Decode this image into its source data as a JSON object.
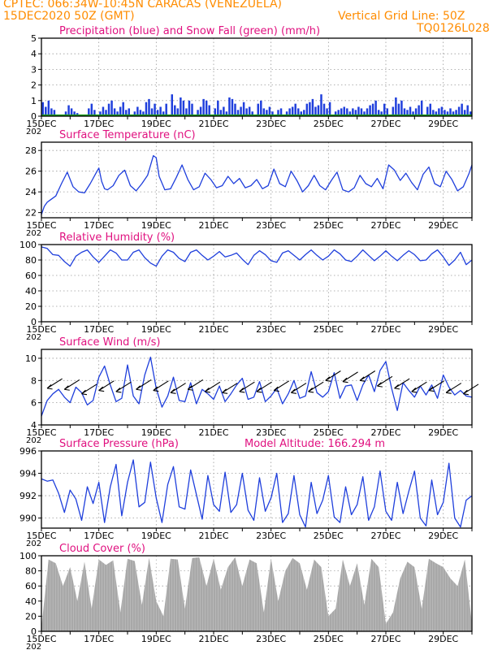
{
  "header": {
    "line1": "CPTEC:   066:34W-10:45N   CARACAS (VENEZUELA)",
    "line2": "15DEC2020 50Z (GMT)",
    "grid_note": "Vertical Grid Line: 50Z",
    "code": "TQ0126L028"
  },
  "colors": {
    "header_text": "#ff8c00",
    "panel_title": "#e0107f",
    "series_line": "#1f3fdc",
    "snow": "#1a9c1a",
    "cloud": "#a8a8a8",
    "wind_arrow": "#000000"
  },
  "x_tick_labels": [
    "15DEC",
    "17DEC",
    "19DEC",
    "21DEC",
    "23DEC",
    "25DEC",
    "27DEC",
    "29DEC"
  ],
  "year_fragment": "202",
  "chart_data": [
    {
      "id": "precip",
      "type": "bar",
      "title": "Precipitation (blue) and Snow Fall (green) (mm/h)",
      "ylim": [
        0,
        5
      ],
      "yticks": [
        0,
        1,
        2,
        3,
        4,
        5
      ],
      "xlim_days": [
        15,
        30
      ],
      "x": [
        15.05,
        15.15,
        15.25,
        15.35,
        15.45,
        15.85,
        15.95,
        16.05,
        16.15,
        16.25,
        16.65,
        16.75,
        16.85,
        17.05,
        17.15,
        17.25,
        17.35,
        17.45,
        17.55,
        17.65,
        17.75,
        17.85,
        17.95,
        18.05,
        18.25,
        18.35,
        18.45,
        18.55,
        18.65,
        18.75,
        18.85,
        18.95,
        19.05,
        19.15,
        19.25,
        19.35,
        19.55,
        19.65,
        19.75,
        19.85,
        19.95,
        20.05,
        20.15,
        20.25,
        20.45,
        20.55,
        20.65,
        20.75,
        20.85,
        21.05,
        21.15,
        21.25,
        21.35,
        21.45,
        21.55,
        21.65,
        21.75,
        21.85,
        21.95,
        22.05,
        22.15,
        22.25,
        22.35,
        22.55,
        22.65,
        22.75,
        22.85,
        22.95,
        23.05,
        23.25,
        23.35,
        23.55,
        23.65,
        23.75,
        23.85,
        23.95,
        24.05,
        24.15,
        24.25,
        24.35,
        24.45,
        24.55,
        24.65,
        24.75,
        24.85,
        24.95,
        25.05,
        25.25,
        25.35,
        25.45,
        25.55,
        25.65,
        25.75,
        25.85,
        25.95,
        26.05,
        26.15,
        26.25,
        26.35,
        26.45,
        26.55,
        26.65,
        26.75,
        26.85,
        26.95,
        27.05,
        27.25,
        27.35,
        27.45,
        27.55,
        27.65,
        27.75,
        27.85,
        27.95,
        28.05,
        28.15,
        28.25,
        28.45,
        28.55,
        28.65,
        28.75,
        28.85,
        28.95,
        29.05,
        29.15,
        29.25,
        29.35,
        29.45,
        29.55,
        29.65,
        29.75,
        29.85,
        29.95
      ],
      "values": [
        0.9,
        0.6,
        1.0,
        0.5,
        0.4,
        0.3,
        0.7,
        0.5,
        0.3,
        0.2,
        0.5,
        0.8,
        0.4,
        0.3,
        0.6,
        0.4,
        0.8,
        1.0,
        0.5,
        0.3,
        0.6,
        0.9,
        0.4,
        0.5,
        0.3,
        0.6,
        0.4,
        0.3,
        0.9,
        1.1,
        0.5,
        0.8,
        0.4,
        0.6,
        0.3,
        0.8,
        1.4,
        0.7,
        0.5,
        1.2,
        1.0,
        0.5,
        1.0,
        0.8,
        0.4,
        0.6,
        1.1,
        1.0,
        0.7,
        0.5,
        1.0,
        0.4,
        0.6,
        0.3,
        1.2,
        1.1,
        0.8,
        0.4,
        0.6,
        0.9,
        0.5,
        0.6,
        0.3,
        0.8,
        1.0,
        0.5,
        0.4,
        0.6,
        0.3,
        0.4,
        0.5,
        0.3,
        0.5,
        0.6,
        0.8,
        0.5,
        0.3,
        0.4,
        0.8,
        0.9,
        1.1,
        0.6,
        0.7,
        1.4,
        0.8,
        0.5,
        0.9,
        0.3,
        0.4,
        0.5,
        0.6,
        0.5,
        0.3,
        0.5,
        0.4,
        0.6,
        0.5,
        0.3,
        0.5,
        0.7,
        0.8,
        1.0,
        0.4,
        0.3,
        0.8,
        0.5,
        0.6,
        1.2,
        0.8,
        1.0,
        0.5,
        0.4,
        0.6,
        0.3,
        0.5,
        0.7,
        1.0,
        0.6,
        0.8,
        0.4,
        0.3,
        0.5,
        0.6,
        0.4,
        0.3,
        0.5,
        0.3,
        0.4,
        0.6,
        0.8,
        0.4,
        0.7,
        0.3
      ],
      "snow_value": 0
    },
    {
      "id": "temp",
      "type": "line",
      "title": "Surface Temperature (nC)",
      "ylim": [
        21.5,
        28.8
      ],
      "yticks": [
        22,
        24,
        26,
        28
      ],
      "xlim_days": [
        15,
        30
      ],
      "x": [
        15.0,
        15.1,
        15.2,
        15.3,
        15.5,
        15.7,
        15.9,
        16.1,
        16.3,
        16.5,
        16.7,
        16.9,
        17.0,
        17.1,
        17.2,
        17.3,
        17.5,
        17.7,
        17.9,
        18.1,
        18.3,
        18.5,
        18.7,
        18.9,
        19.0,
        19.1,
        19.3,
        19.5,
        19.7,
        19.9,
        20.1,
        20.3,
        20.5,
        20.7,
        20.9,
        21.1,
        21.3,
        21.5,
        21.7,
        21.9,
        22.1,
        22.3,
        22.5,
        22.7,
        22.9,
        23.1,
        23.3,
        23.5,
        23.7,
        23.9,
        24.1,
        24.3,
        24.5,
        24.7,
        24.9,
        25.1,
        25.3,
        25.5,
        25.7,
        25.9,
        26.1,
        26.3,
        26.5,
        26.7,
        26.9,
        27.1,
        27.3,
        27.5,
        27.7,
        27.9,
        28.1,
        28.3,
        28.5,
        28.7,
        28.9,
        29.1,
        29.3,
        29.5,
        29.7,
        29.9,
        30.0
      ],
      "values": [
        21.8,
        22.6,
        23.0,
        23.2,
        23.6,
        24.8,
        25.9,
        24.5,
        24.0,
        23.9,
        24.8,
        25.8,
        26.3,
        25.0,
        24.3,
        24.2,
        24.6,
        25.6,
        26.1,
        24.6,
        24.1,
        24.8,
        25.6,
        27.5,
        27.3,
        25.5,
        24.2,
        24.3,
        25.4,
        26.6,
        25.2,
        24.2,
        24.5,
        25.8,
        25.2,
        24.4,
        24.6,
        25.5,
        24.8,
        25.3,
        24.4,
        24.6,
        25.2,
        24.3,
        24.6,
        26.2,
        24.8,
        24.5,
        26.0,
        25.1,
        24.0,
        24.6,
        25.6,
        24.6,
        24.2,
        25.1,
        25.9,
        24.2,
        24.0,
        24.4,
        25.6,
        24.8,
        24.5,
        25.3,
        24.3,
        26.6,
        26.1,
        25.1,
        25.8,
        24.9,
        24.2,
        25.7,
        26.4,
        24.8,
        24.5,
        26.0,
        25.2,
        24.1,
        24.5,
        25.8,
        26.6
      ]
    },
    {
      "id": "rh",
      "type": "line",
      "title": "Relative Humidity (%)",
      "ylim": [
        0,
        100
      ],
      "yticks": [
        0,
        20,
        40,
        60,
        80,
        100
      ],
      "xlim_days": [
        15,
        30
      ],
      "x": [
        15.0,
        15.2,
        15.4,
        15.6,
        15.8,
        16.0,
        16.2,
        16.4,
        16.6,
        16.8,
        17.0,
        17.2,
        17.4,
        17.6,
        17.8,
        18.0,
        18.2,
        18.4,
        18.6,
        18.8,
        19.0,
        19.2,
        19.4,
        19.6,
        19.8,
        20.0,
        20.2,
        20.4,
        20.6,
        20.8,
        21.0,
        21.2,
        21.4,
        21.6,
        21.8,
        22.0,
        22.2,
        22.4,
        22.6,
        22.8,
        23.0,
        23.2,
        23.4,
        23.6,
        23.8,
        24.0,
        24.2,
        24.4,
        24.6,
        24.8,
        25.0,
        25.2,
        25.4,
        25.6,
        25.8,
        26.0,
        26.2,
        26.4,
        26.6,
        26.8,
        27.0,
        27.2,
        27.4,
        27.6,
        27.8,
        28.0,
        28.2,
        28.4,
        28.6,
        28.8,
        29.0,
        29.2,
        29.4,
        29.6,
        29.8,
        30.0
      ],
      "values": [
        97,
        95,
        87,
        86,
        78,
        72,
        85,
        90,
        93,
        84,
        77,
        85,
        93,
        89,
        80,
        80,
        90,
        93,
        83,
        76,
        72,
        85,
        93,
        90,
        82,
        78,
        90,
        93,
        86,
        80,
        85,
        91,
        84,
        86,
        89,
        81,
        74,
        86,
        92,
        87,
        79,
        77,
        89,
        92,
        86,
        80,
        87,
        93,
        86,
        80,
        85,
        93,
        88,
        80,
        78,
        85,
        93,
        86,
        79,
        85,
        92,
        85,
        79,
        86,
        92,
        87,
        79,
        80,
        88,
        93,
        84,
        73,
        80,
        90,
        74,
        80
      ]
    },
    {
      "id": "wind",
      "type": "line",
      "title": "Surface Wind (m/s)",
      "ylim": [
        4,
        10.8
      ],
      "yticks": [
        4,
        6,
        8,
        10
      ],
      "xlim_days": [
        15,
        30
      ],
      "x": [
        15.0,
        15.2,
        15.4,
        15.6,
        15.8,
        16.0,
        16.2,
        16.4,
        16.6,
        16.8,
        17.0,
        17.2,
        17.4,
        17.6,
        17.8,
        18.0,
        18.2,
        18.4,
        18.6,
        18.8,
        19.0,
        19.2,
        19.4,
        19.6,
        19.8,
        20.0,
        20.2,
        20.4,
        20.6,
        20.8,
        21.0,
        21.2,
        21.4,
        21.6,
        21.8,
        22.0,
        22.2,
        22.4,
        22.6,
        22.8,
        23.0,
        23.2,
        23.4,
        23.6,
        23.8,
        24.0,
        24.2,
        24.4,
        24.6,
        24.8,
        25.0,
        25.2,
        25.4,
        25.6,
        25.8,
        26.0,
        26.2,
        26.4,
        26.6,
        26.8,
        27.0,
        27.2,
        27.4,
        27.6,
        27.8,
        28.0,
        28.2,
        28.4,
        28.6,
        28.8,
        29.0,
        29.2,
        29.4,
        29.6,
        29.8,
        30.0
      ],
      "values": [
        4.8,
        6.2,
        6.8,
        7.2,
        6.5,
        6.0,
        7.4,
        6.9,
        5.8,
        6.2,
        8.3,
        9.3,
        7.6,
        6.1,
        6.4,
        9.4,
        6.6,
        5.9,
        8.5,
        10.1,
        7.3,
        5.6,
        6.6,
        8.3,
        6.2,
        6.1,
        7.8,
        5.9,
        7.2,
        6.8,
        6.3,
        7.5,
        6.1,
        6.8,
        7.6,
        8.2,
        6.3,
        6.5,
        7.9,
        6.1,
        6.6,
        7.3,
        5.9,
        6.8,
        8.0,
        6.4,
        6.6,
        8.8,
        6.9,
        6.5,
        7.0,
        8.7,
        6.4,
        7.5,
        7.6,
        6.2,
        7.6,
        8.5,
        7.0,
        8.9,
        9.7,
        7.3,
        5.3,
        7.8,
        7.1,
        6.5,
        7.5,
        6.7,
        7.6,
        6.4,
        8.5,
        7.4,
        6.7,
        7.1,
        6.6,
        6.5
      ],
      "arrows_x": [
        15.2,
        15.8,
        16.4,
        17.0,
        17.6,
        18.3,
        18.9,
        19.5,
        20.1,
        20.7,
        21.3,
        21.9,
        22.5,
        23.1,
        23.7,
        24.3,
        24.9,
        25.5,
        26.1,
        26.7,
        27.3,
        27.9,
        28.5,
        29.1,
        29.7
      ],
      "arrows_speed": [
        7.3,
        7.2,
        6.8,
        7.1,
        7.0,
        7.2,
        7.1,
        6.9,
        7.2,
        7.0,
        6.9,
        7.0,
        7.0,
        7.1,
        6.9,
        7.0,
        8.0,
        7.9,
        8.0,
        7.5,
        7.3,
        7.0,
        7.1,
        6.9,
        6.8
      ]
    },
    {
      "id": "pressure",
      "type": "line",
      "title": "Surface Pressure (hPa)",
      "annotation": "Model Altitude: 166.294 m",
      "ylim": [
        989.1,
        996
      ],
      "yticks": [
        990,
        992,
        994,
        996
      ],
      "xlim_days": [
        15,
        30
      ],
      "x": [
        15.0,
        15.2,
        15.4,
        15.6,
        15.8,
        16.0,
        16.2,
        16.4,
        16.6,
        16.8,
        17.0,
        17.2,
        17.4,
        17.6,
        17.8,
        18.0,
        18.2,
        18.4,
        18.6,
        18.8,
        19.0,
        19.2,
        19.4,
        19.6,
        19.8,
        20.0,
        20.2,
        20.4,
        20.6,
        20.8,
        21.0,
        21.2,
        21.4,
        21.6,
        21.8,
        22.0,
        22.2,
        22.4,
        22.6,
        22.8,
        23.0,
        23.2,
        23.4,
        23.6,
        23.8,
        24.0,
        24.2,
        24.4,
        24.6,
        24.8,
        25.0,
        25.2,
        25.4,
        25.6,
        25.8,
        26.0,
        26.2,
        26.4,
        26.6,
        26.8,
        27.0,
        27.2,
        27.4,
        27.6,
        27.8,
        28.0,
        28.2,
        28.4,
        28.6,
        28.8,
        29.0,
        29.2,
        29.4,
        29.6,
        29.8,
        30.0
      ],
      "values": [
        993.5,
        993.3,
        993.4,
        992.2,
        990.5,
        992.5,
        991.7,
        989.8,
        992.8,
        991.3,
        993.2,
        989.6,
        992.8,
        994.8,
        990.2,
        993.2,
        995.2,
        991.0,
        991.4,
        995.0,
        991.8,
        989.6,
        993.0,
        994.6,
        991.0,
        990.8,
        994.3,
        992.1,
        989.9,
        993.8,
        991.2,
        990.6,
        994.1,
        990.5,
        991.2,
        994.0,
        990.7,
        989.8,
        993.6,
        990.6,
        991.8,
        994.0,
        989.6,
        990.4,
        993.8,
        990.3,
        989.2,
        993.2,
        990.4,
        991.6,
        993.8,
        990.1,
        989.6,
        992.8,
        990.3,
        991.2,
        993.7,
        989.8,
        991.0,
        994.2,
        990.6,
        989.8,
        993.2,
        990.4,
        992.4,
        994.2,
        990.0,
        989.3,
        993.4,
        990.3,
        991.4,
        994.9,
        990.0,
        989.2,
        991.6,
        992.0
      ]
    },
    {
      "id": "cloud",
      "type": "area",
      "title": "Cloud Cover (%)",
      "ylim": [
        0,
        100
      ],
      "yticks": [
        0,
        20,
        40,
        60,
        80,
        100
      ],
      "xlim_days": [
        15,
        30
      ],
      "x": [
        15.0,
        15.25,
        15.5,
        15.75,
        16.0,
        16.25,
        16.5,
        16.75,
        17.0,
        17.25,
        17.5,
        17.75,
        18.0,
        18.25,
        18.5,
        18.75,
        19.0,
        19.25,
        19.5,
        19.75,
        20.0,
        20.25,
        20.5,
        20.75,
        21.0,
        21.25,
        21.5,
        21.75,
        22.0,
        22.25,
        22.5,
        22.75,
        23.0,
        23.25,
        23.5,
        23.75,
        24.0,
        24.25,
        24.5,
        24.75,
        25.0,
        25.25,
        25.5,
        25.75,
        26.0,
        26.25,
        26.5,
        26.75,
        27.0,
        27.25,
        27.5,
        27.75,
        28.0,
        28.25,
        28.5,
        28.75,
        29.0,
        29.25,
        29.5,
        29.75,
        30.0
      ],
      "values": [
        5,
        95,
        90,
        60,
        85,
        40,
        92,
        30,
        95,
        88,
        94,
        25,
        96,
        93,
        35,
        97,
        40,
        20,
        96,
        95,
        30,
        97,
        98,
        60,
        96,
        55,
        85,
        98,
        60,
        95,
        90,
        25,
        96,
        40,
        80,
        97,
        90,
        55,
        95,
        85,
        20,
        30,
        95,
        60,
        90,
        35,
        96,
        85,
        10,
        25,
        70,
        92,
        85,
        30,
        96,
        90,
        85,
        70,
        60,
        95,
        10
      ]
    }
  ]
}
